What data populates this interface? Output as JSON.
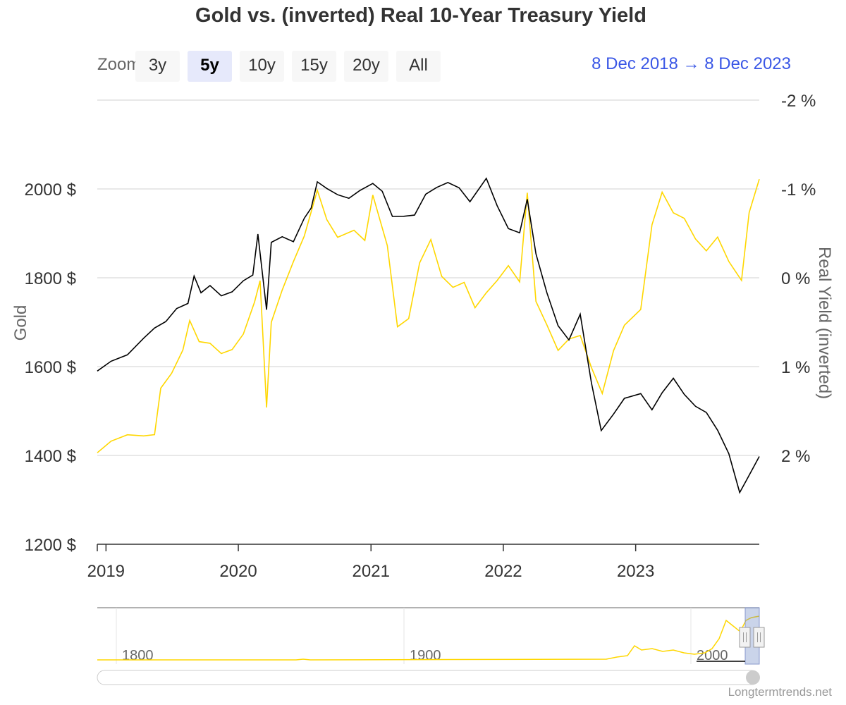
{
  "title": "Gold vs. (inverted) Real 10-Year Treasury Yield",
  "range_selector": {
    "label": "Zoom",
    "buttons": [
      "3y",
      "5y",
      "10y",
      "15y",
      "20y",
      "All"
    ],
    "selected": "5y"
  },
  "date_range": {
    "from": "8 Dec 2018",
    "to": "8 Dec 2023"
  },
  "credits": "Longtermtrends.net",
  "colors": {
    "gold_series": "#000000",
    "yield_series": "#FFD700",
    "range_text": "#3a57e6"
  },
  "chart_data": {
    "type": "line",
    "title": "Gold vs. (inverted) Real 10-Year Treasury Yield",
    "x_axis": {
      "type": "datetime",
      "range": [
        "2018-12-08",
        "2023-12-08"
      ],
      "tick_labels": [
        "2019",
        "2020",
        "2021",
        "2022",
        "2023"
      ]
    },
    "y_axes": [
      {
        "id": "gold",
        "label": "Gold",
        "position": "left",
        "range": [
          1200,
          2200
        ],
        "tick_labels": [
          "1200 $",
          "1400 $",
          "1600 $",
          "1800 $",
          "2000 $"
        ]
      },
      {
        "id": "yield",
        "label": "Real Yield (inverted)",
        "position": "right",
        "inverted": true,
        "range": [
          -2,
          3
        ],
        "tick_labels": [
          "-2 %",
          "-1 %",
          "0 %",
          "1 %",
          "2 %"
        ]
      }
    ],
    "grid": true,
    "legend": "none",
    "series": [
      {
        "name": "Gold",
        "axis": "gold",
        "color": "#000000",
        "points": [
          [
            "2018-12-08",
            1590
          ],
          [
            "2019-01-15",
            1610
          ],
          [
            "2019-03-01",
            1630
          ],
          [
            "2019-04-15",
            1660
          ],
          [
            "2019-05-15",
            1690
          ],
          [
            "2019-06-15",
            1700
          ],
          [
            "2019-07-15",
            1730
          ],
          [
            "2019-08-15",
            1745
          ],
          [
            "2019-09-01",
            1800
          ],
          [
            "2019-09-20",
            1770
          ],
          [
            "2019-10-15",
            1780
          ],
          [
            "2019-11-15",
            1760
          ],
          [
            "2019-12-15",
            1770
          ],
          [
            "2020-01-15",
            1790
          ],
          [
            "2020-02-10",
            1810
          ],
          [
            "2020-02-24",
            1895
          ],
          [
            "2020-03-19",
            1730
          ],
          [
            "2020-04-01",
            1880
          ],
          [
            "2020-05-01",
            1890
          ],
          [
            "2020-06-01",
            1885
          ],
          [
            "2020-07-01",
            1930
          ],
          [
            "2020-07-20",
            1960
          ],
          [
            "2020-08-06",
            2015
          ],
          [
            "2020-09-01",
            2000
          ],
          [
            "2020-10-01",
            1990
          ],
          [
            "2020-11-01",
            1975
          ],
          [
            "2020-12-01",
            2000
          ],
          [
            "2021-01-06",
            2010
          ],
          [
            "2021-02-01",
            1995
          ],
          [
            "2021-03-01",
            1940
          ],
          [
            "2021-04-01",
            1935
          ],
          [
            "2021-05-01",
            1945
          ],
          [
            "2021-06-01",
            1985
          ],
          [
            "2021-07-01",
            2005
          ],
          [
            "2021-08-01",
            2015
          ],
          [
            "2021-09-01",
            2000
          ],
          [
            "2021-10-01",
            1975
          ],
          [
            "2021-11-15",
            2020
          ],
          [
            "2021-12-15",
            1965
          ],
          [
            "2022-01-15",
            1910
          ],
          [
            "2022-02-15",
            1900
          ],
          [
            "2022-03-08",
            1980
          ],
          [
            "2022-04-01",
            1850
          ],
          [
            "2022-05-01",
            1770
          ],
          [
            "2022-06-01",
            1690
          ],
          [
            "2022-07-01",
            1660
          ],
          [
            "2022-08-01",
            1720
          ],
          [
            "2022-09-01",
            1560
          ],
          [
            "2022-09-28",
            1460
          ],
          [
            "2022-11-01",
            1490
          ],
          [
            "2022-12-01",
            1530
          ],
          [
            "2023-01-15",
            1540
          ],
          [
            "2023-02-15",
            1500
          ],
          [
            "2023-03-15",
            1545
          ],
          [
            "2023-04-15",
            1570
          ],
          [
            "2023-05-15",
            1540
          ],
          [
            "2023-06-15",
            1510
          ],
          [
            "2023-07-15",
            1495
          ],
          [
            "2023-08-15",
            1460
          ],
          [
            "2023-09-15",
            1400
          ],
          [
            "2023-10-15",
            1320
          ],
          [
            "2023-11-01",
            1340
          ],
          [
            "2023-11-20",
            1370
          ],
          [
            "2023-12-08",
            1400
          ]
        ]
      },
      {
        "name": "Real Yield (inverted)",
        "axis": "yield",
        "color": "#FFD700",
        "points": [
          [
            "2018-12-08",
            1.97
          ],
          [
            "2019-01-15",
            1.85
          ],
          [
            "2019-03-01",
            1.75
          ],
          [
            "2019-04-15",
            1.8
          ],
          [
            "2019-05-15",
            1.75
          ],
          [
            "2019-06-01",
            1.25
          ],
          [
            "2019-07-01",
            1.08
          ],
          [
            "2019-08-01",
            0.8
          ],
          [
            "2019-08-20",
            0.5
          ],
          [
            "2019-09-15",
            0.7
          ],
          [
            "2019-10-15",
            0.75
          ],
          [
            "2019-11-15",
            0.85
          ],
          [
            "2019-12-15",
            0.8
          ],
          [
            "2020-01-15",
            0.65
          ],
          [
            "2020-02-15",
            0.25
          ],
          [
            "2020-03-01",
            0.05
          ],
          [
            "2020-03-19",
            1.45
          ],
          [
            "2020-04-01",
            0.5
          ],
          [
            "2020-05-01",
            0.15
          ],
          [
            "2020-06-01",
            -0.2
          ],
          [
            "2020-07-01",
            -0.45
          ],
          [
            "2020-08-06",
            -1.0
          ],
          [
            "2020-09-01",
            -0.65
          ],
          [
            "2020-10-01",
            -0.45
          ],
          [
            "2020-11-15",
            -0.55
          ],
          [
            "2020-12-15",
            -0.4
          ],
          [
            "2021-01-06",
            -0.95
          ],
          [
            "2021-02-15",
            -0.35
          ],
          [
            "2021-03-15",
            0.55
          ],
          [
            "2021-04-15",
            0.45
          ],
          [
            "2021-05-15",
            -0.15
          ],
          [
            "2021-06-15",
            -0.45
          ],
          [
            "2021-07-15",
            0.0
          ],
          [
            "2021-08-15",
            0.1
          ],
          [
            "2021-09-15",
            0.05
          ],
          [
            "2021-10-15",
            0.35
          ],
          [
            "2021-11-15",
            0.15
          ],
          [
            "2021-12-15",
            0.05
          ],
          [
            "2022-01-15",
            -0.15
          ],
          [
            "2022-02-15",
            0.05
          ],
          [
            "2022-03-08",
            -0.95
          ],
          [
            "2022-04-01",
            0.25
          ],
          [
            "2022-05-01",
            0.55
          ],
          [
            "2022-06-01",
            0.8
          ],
          [
            "2022-07-01",
            0.7
          ],
          [
            "2022-08-01",
            0.65
          ],
          [
            "2022-09-01",
            1.0
          ],
          [
            "2022-10-01",
            1.32
          ],
          [
            "2022-11-01",
            0.8
          ],
          [
            "2022-12-01",
            0.55
          ],
          [
            "2023-01-15",
            0.35
          ],
          [
            "2023-02-15",
            -0.6
          ],
          [
            "2023-03-15",
            -0.95
          ],
          [
            "2023-04-15",
            -0.75
          ],
          [
            "2023-05-15",
            -0.65
          ],
          [
            "2023-06-15",
            -0.45
          ],
          [
            "2023-07-15",
            -0.3
          ],
          [
            "2023-08-15",
            -0.45
          ],
          [
            "2023-09-15",
            -0.2
          ],
          [
            "2023-10-20",
            0.05
          ],
          [
            "2023-11-10",
            -0.75
          ],
          [
            "2023-12-08",
            -1.1
          ]
        ]
      }
    ]
  },
  "navigator": {
    "tick_labels": [
      "1800",
      "1900",
      "2000"
    ]
  }
}
